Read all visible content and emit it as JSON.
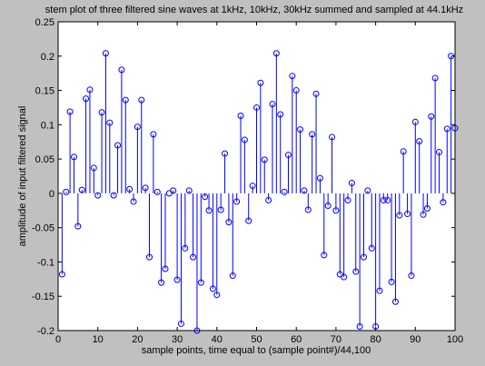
{
  "chart_data": {
    "type": "stem",
    "title": "stem plot of three filtered sine waves at 1kHz, 10kHz, 30kHz  summed and sampled at 44.1kHz",
    "xlabel": "sample points, time equal to (sample point#)/44,100",
    "ylabel": "amplitude of input filtered signal",
    "xlim": [
      0,
      100
    ],
    "ylim": [
      -0.2,
      0.25
    ],
    "xticks": [
      0,
      10,
      20,
      30,
      40,
      50,
      60,
      70,
      80,
      90,
      100
    ],
    "yticks": [
      -0.2,
      -0.15,
      -0.1,
      -0.05,
      0,
      0.05,
      0.1,
      0.15,
      0.2,
      0.25
    ],
    "xticklabels": [
      "0",
      "10",
      "20",
      "30",
      "40",
      "50",
      "60",
      "70",
      "80",
      "90",
      "100"
    ],
    "yticklabels": [
      "-0.2",
      "-0.15",
      "-0.1",
      "-0.05",
      "0",
      "0.05",
      "0.1",
      "0.15",
      "0.2",
      "0.25"
    ],
    "grid": false,
    "line_color": "#0000ff",
    "marker": "open-circle",
    "x": [
      1,
      2,
      3,
      4,
      5,
      6,
      7,
      8,
      9,
      10,
      11,
      12,
      13,
      14,
      15,
      16,
      17,
      18,
      19,
      20,
      21,
      22,
      23,
      24,
      25,
      26,
      27,
      28,
      29,
      30,
      31,
      32,
      33,
      34,
      35,
      36,
      37,
      38,
      39,
      40,
      41,
      42,
      43,
      44,
      45,
      46,
      47,
      48,
      49,
      50,
      51,
      52,
      53,
      54,
      55,
      56,
      57,
      58,
      59,
      60,
      61,
      62,
      63,
      64,
      65,
      66,
      67,
      68,
      69,
      70,
      71,
      72,
      73,
      74,
      75,
      76,
      77,
      78,
      79,
      80,
      81,
      82,
      83,
      84,
      85,
      86,
      87,
      88,
      89,
      90,
      91,
      92,
      93,
      94,
      95,
      96,
      97,
      98,
      99,
      100
    ],
    "y": [
      -0.118,
      0.002,
      0.119,
      0.053,
      -0.048,
      0.005,
      0.138,
      0.151,
      0.037,
      -0.003,
      0.118,
      0.204,
      0.103,
      -0.003,
      0.07,
      0.18,
      0.136,
      0.006,
      -0.012,
      0.097,
      0.136,
      0.008,
      -0.093,
      0.086,
      0.002,
      -0.13,
      -0.11,
      0.0,
      0.004,
      -0.126,
      -0.19,
      -0.08,
      0.004,
      -0.093,
      -0.2,
      -0.13,
      -0.005,
      -0.025,
      -0.139,
      -0.148,
      -0.024,
      0.058,
      -0.042,
      -0.12,
      -0.012,
      0.113,
      0.078,
      -0.04,
      0.011,
      0.125,
      0.161,
      0.049,
      -0.01,
      0.13,
      0.204,
      0.115,
      0.002,
      0.056,
      0.171,
      0.15,
      0.093,
      0.004,
      -0.024,
      0.086,
      0.145,
      0.022,
      -0.09,
      -0.018,
      0.082,
      -0.025,
      -0.118,
      -0.122,
      -0.01,
      0.015,
      -0.114,
      -0.194,
      -0.093,
      0.004,
      -0.08,
      -0.194,
      -0.142,
      -0.01,
      -0.01,
      -0.129,
      -0.158,
      -0.032,
      0.061,
      -0.03,
      -0.12,
      0.104,
      0.076,
      -0.031,
      -0.022,
      0.112,
      0.168,
      0.06,
      -0.013,
      0.094,
      0.2,
      0.095
    ]
  }
}
